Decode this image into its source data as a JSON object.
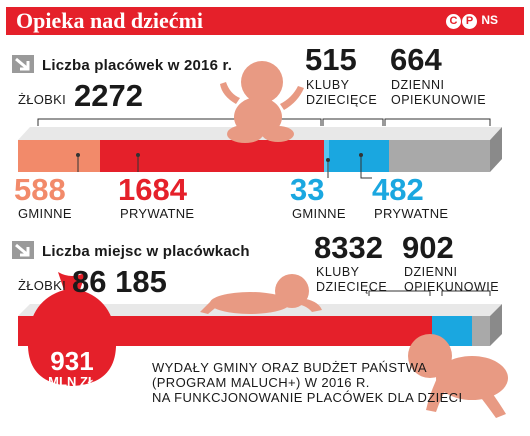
{
  "header": {
    "title": "Opieka nad dziećmi",
    "logo_c": "C",
    "logo_p": "P",
    "logo_ns": "NS"
  },
  "colors": {
    "red": "#e5202a",
    "salmon": "#f28a6a",
    "cyan": "#1aa7e0",
    "gray": "#a9a9a9",
    "baby": "#e89a83"
  },
  "chart_data": [
    {
      "type": "bar",
      "title": "Liczba placówek w 2016 r.",
      "groups": [
        {
          "label": "Żłobki",
          "total": 2272,
          "segments": [
            {
              "name": "Gminne",
              "value": 588
            },
            {
              "name": "Prywatne",
              "value": 1684
            }
          ]
        },
        {
          "label": "Kluby dziecięce",
          "total": 515,
          "segments": [
            {
              "name": "Gminne",
              "value": 33
            },
            {
              "name": "Prywatne",
              "value": 482
            }
          ]
        },
        {
          "label": "Dzienni opiekunowie",
          "total": 664,
          "segments": []
        }
      ]
    },
    {
      "type": "bar",
      "title": "Liczba miejsc w placówkach",
      "groups": [
        {
          "label": "Żłobki",
          "value": 86185
        },
        {
          "label": "Kluby dziecięce",
          "value": 8332
        },
        {
          "label": "Dzienni opiekunowie",
          "value": 902
        }
      ]
    }
  ],
  "section1": {
    "title": "Liczba placówek w 2016 r.",
    "zlobki_label": "ŻŁOBKI",
    "zlobki_value": "2272",
    "kluby_value": "515",
    "kluby_label_1": "KLUBY",
    "kluby_label_2": "DZIECIĘCE",
    "opiek_value": "664",
    "opiek_label_1": "DZIENNI",
    "opiek_label_2": "OPIEKUNOWIE",
    "z_gminne_value": "588",
    "z_gminne_label": "GMINNE",
    "z_prywatne_value": "1684",
    "z_prywatne_label": "PRYWATNE",
    "k_gminne_value": "33",
    "k_gminne_label": "GMINNE",
    "k_prywatne_value": "482",
    "k_prywatne_label": "PRYWATNE"
  },
  "section2": {
    "title": "Liczba miejsc w placówkach",
    "zlobki_label": "ŻŁOBKI",
    "zlobki_value": "86 185",
    "kluby_value": "8332",
    "kluby_label_1": "KLUBY",
    "kluby_label_2": "DZIECIĘCE",
    "opiek_value": "902",
    "opiek_label_1": "DZIENNI",
    "opiek_label_2": "OPIEKUNOWIE"
  },
  "spending": {
    "value": "931",
    "unit": "MLN ZŁ",
    "line1": "WYDAŁY GMINY ORAZ BUDŻET PAŃSTWA",
    "line2": "(PROGRAM MALUCH+) W 2016 R.",
    "line3": "NA FUNKCJONOWANIE PLACÓWEK DLA DZIECI"
  }
}
